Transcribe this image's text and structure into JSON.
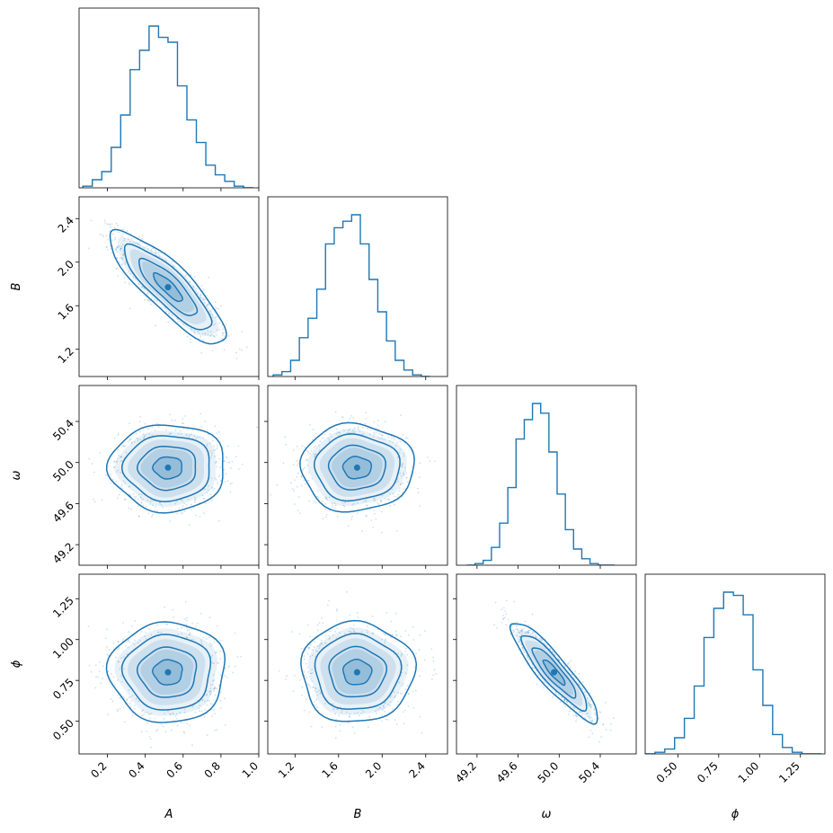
{
  "chart_data": {
    "type": "corner",
    "parameters": [
      {
        "name": "A",
        "range": [
          0.05,
          1.0
        ],
        "ticks": [
          0.2,
          0.4,
          0.6,
          0.8,
          1.0
        ],
        "tick_labels": [
          "0.2",
          "0.4",
          "0.6",
          "0.8",
          "1.0"
        ],
        "mean": 0.52,
        "sd": 0.13
      },
      {
        "name": "B",
        "range": [
          0.95,
          2.6
        ],
        "ticks": [
          1.2,
          1.6,
          2.0,
          2.4
        ],
        "tick_labels": [
          "1.2",
          "1.6",
          "2.0",
          "2.4"
        ],
        "x_ticks": [
          1.2,
          1.6,
          2.0,
          2.4
        ],
        "mean": 1.77,
        "sd": 0.22
      },
      {
        "name": "ω",
        "range": [
          49.0,
          50.75
        ],
        "ticks": [
          49.2,
          49.6,
          50.0,
          50.4
        ],
        "tick_labels": [
          "49.2",
          "49.6",
          "50.0",
          "50.4"
        ],
        "mean": 49.95,
        "sd": 0.18
      },
      {
        "name": "ϕ",
        "range": [
          0.3,
          1.4
        ],
        "ticks": [
          0.5,
          0.75,
          1.0,
          1.25
        ],
        "tick_labels": [
          "0.50",
          "0.75",
          "1.00",
          "1.25"
        ],
        "mean": 0.8,
        "sd": 0.13
      }
    ],
    "axis_labels": {
      "x": [
        "A",
        "B",
        "ω",
        "ϕ"
      ],
      "y": [
        "B",
        "ω",
        "ϕ"
      ]
    },
    "histograms": [
      {
        "param": "A",
        "bin_edges": [
          0.07,
          0.12,
          0.17,
          0.22,
          0.27,
          0.32,
          0.37,
          0.42,
          0.47,
          0.52,
          0.57,
          0.62,
          0.67,
          0.72,
          0.77,
          0.82,
          0.87,
          0.92,
          0.97
        ],
        "counts": [
          1,
          5,
          10,
          25,
          45,
          73,
          85,
          100,
          93,
          90,
          63,
          42,
          28,
          14,
          8,
          4,
          1,
          0
        ]
      },
      {
        "param": "B",
        "bin_edges": [
          1.0,
          1.08,
          1.16,
          1.24,
          1.32,
          1.4,
          1.48,
          1.56,
          1.64,
          1.72,
          1.8,
          1.88,
          1.96,
          2.04,
          2.12,
          2.2,
          2.28,
          2.36,
          2.44
        ],
        "counts": [
          1,
          3,
          10,
          24,
          36,
          54,
          82,
          92,
          96,
          100,
          82,
          60,
          40,
          22,
          10,
          4,
          1,
          0
        ]
      },
      {
        "param": "ω",
        "bin_edges": [
          49.1,
          49.18,
          49.26,
          49.34,
          49.42,
          49.5,
          49.58,
          49.66,
          49.74,
          49.82,
          49.9,
          49.98,
          50.06,
          50.14,
          50.22,
          50.3,
          50.38,
          50.46,
          50.54
        ],
        "counts": [
          0,
          1,
          3,
          11,
          26,
          48,
          78,
          90,
          100,
          94,
          70,
          44,
          22,
          10,
          4,
          1,
          0,
          0
        ]
      },
      {
        "param": "ϕ",
        "bin_edges": [
          0.3,
          0.36,
          0.42,
          0.48,
          0.54,
          0.6,
          0.66,
          0.72,
          0.78,
          0.84,
          0.9,
          0.96,
          1.02,
          1.08,
          1.14,
          1.2,
          1.26,
          1.32,
          1.38
        ],
        "counts": [
          0,
          1,
          3,
          10,
          22,
          42,
          72,
          90,
          100,
          98,
          86,
          52,
          30,
          12,
          4,
          1,
          0,
          0
        ]
      }
    ],
    "pairs": [
      {
        "x": "A",
        "y": "B",
        "correlation": -0.85
      },
      {
        "x": "A",
        "y": "ω",
        "correlation": 0.0
      },
      {
        "x": "B",
        "y": "ω",
        "correlation": 0.0
      },
      {
        "x": "A",
        "y": "ϕ",
        "correlation": 0.0
      },
      {
        "x": "B",
        "y": "ϕ",
        "correlation": 0.0
      },
      {
        "x": "ω",
        "y": "ϕ",
        "correlation": -0.9
      }
    ],
    "contour_levels_sigma": [
      0.5,
      1.0,
      1.5,
      2.0
    ],
    "colors": {
      "main": "#1f77b4",
      "scatter": "#1f77b4"
    },
    "grid": false,
    "legend": "none"
  }
}
